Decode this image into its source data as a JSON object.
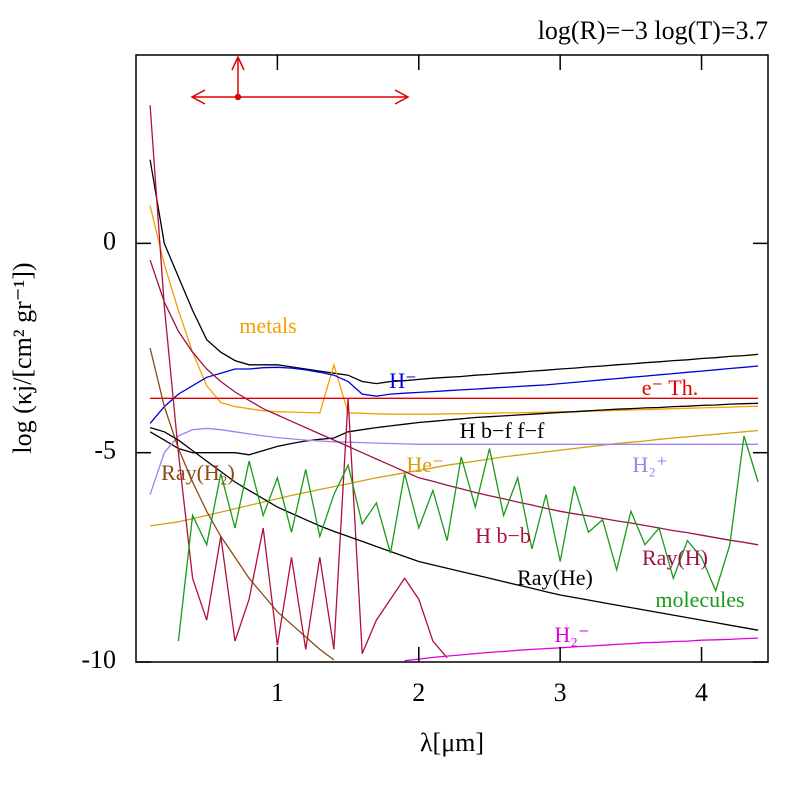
{
  "chart_data": {
    "type": "line",
    "title": "log(R)=−3  log(T)=3.7",
    "x_label": "λ[μm]",
    "y_label": "log (κj/[cm² gr⁻¹])",
    "xlim": [
      0,
      4.47
    ],
    "ylim": [
      -10,
      4.5
    ],
    "xticks": [
      1,
      2,
      3,
      4
    ],
    "yticks": [
      -10,
      -5,
      0
    ],
    "x": [
      0.1,
      0.2,
      0.3,
      0.4,
      0.5,
      0.6,
      0.7,
      0.8,
      0.9,
      1.0,
      1.1,
      1.2,
      1.3,
      1.4,
      1.5,
      1.6,
      1.7,
      1.8,
      1.9,
      2.0,
      2.1,
      2.2,
      2.3,
      2.4,
      2.5,
      2.6,
      2.7,
      2.8,
      2.9,
      3.0,
      3.1,
      3.2,
      3.3,
      3.4,
      3.5,
      3.6,
      3.7,
      3.8,
      3.9,
      4.0,
      4.1,
      4.2,
      4.3,
      4.4
    ],
    "series": [
      {
        "color": "#000000",
        "values": [
          2.0,
          0.0,
          -0.8,
          -1.6,
          -2.3,
          -2.6,
          -2.8,
          -2.9,
          -2.9,
          -2.9,
          -2.95,
          -3.0,
          -3.05,
          -3.1,
          -3.15,
          -3.3,
          -3.35,
          -3.3,
          -3.28,
          -3.25,
          -3.22,
          -3.2,
          -3.18,
          -3.15,
          -3.13,
          -3.1,
          -3.08,
          -3.05,
          -3.03,
          -3.0,
          -2.98,
          -2.95,
          -2.93,
          -2.9,
          -2.88,
          -2.85,
          -2.83,
          -2.8,
          -2.78,
          -2.75,
          -2.73,
          -2.7,
          -2.68,
          -2.65
        ]
      },
      {
        "name": "metals",
        "color": "#f5a000",
        "values": [
          0.9,
          -0.5,
          -1.6,
          -2.6,
          -3.4,
          -3.8,
          -3.9,
          -3.95,
          -4.0,
          -4.02,
          -4.03,
          -4.04,
          -4.05,
          -2.9,
          -4.05,
          -4.06,
          -4.07,
          -4.08,
          -4.08,
          -4.08,
          -4.08,
          -4.07,
          -4.07,
          -4.06,
          -4.06,
          -4.05,
          -4.05,
          -4.04,
          -4.03,
          -4.02,
          -4.02,
          -4.01,
          -4.0,
          -3.99,
          -3.98,
          -3.97,
          -3.96,
          -3.95,
          -3.94,
          -3.93,
          -3.92,
          -3.91,
          -3.9,
          -3.89
        ]
      },
      {
        "name": "H⁻",
        "color": "#0000dd",
        "values": [
          -4.3,
          -3.9,
          -3.6,
          -3.4,
          -3.2,
          -3.1,
          -3.0,
          -3.0,
          -2.97,
          -2.96,
          -2.98,
          -3.02,
          -3.08,
          -3.15,
          -3.3,
          -3.6,
          -3.65,
          -3.6,
          -3.58,
          -3.56,
          -3.54,
          -3.52,
          -3.5,
          -3.48,
          -3.46,
          -3.44,
          -3.42,
          -3.4,
          -3.38,
          -3.35,
          -3.32,
          -3.29,
          -3.26,
          -3.23,
          -3.2,
          -3.17,
          -3.14,
          -3.11,
          -3.08,
          -3.05,
          -3.02,
          -2.99,
          -2.96,
          -2.93
        ]
      },
      {
        "name": "e⁻ Th.",
        "color": "#e00000",
        "values": [
          -3.7,
          -3.7,
          -3.7,
          -3.7,
          -3.7,
          -3.7,
          -3.7,
          -3.7,
          -3.7,
          -3.7,
          -3.7,
          -3.7,
          -3.7,
          -3.7,
          -3.7,
          -3.7,
          -3.7,
          -3.7,
          -3.7,
          -3.7,
          -3.7,
          -3.7,
          -3.7,
          -3.7,
          -3.7,
          -3.7,
          -3.7,
          -3.7,
          -3.7,
          -3.7,
          -3.7,
          -3.7,
          -3.7,
          -3.7,
          -3.7,
          -3.7,
          -3.7,
          -3.7,
          -3.7,
          -3.7,
          -3.7,
          -3.7,
          -3.7,
          -3.7
        ]
      },
      {
        "name": "H b−f f−f",
        "color": "#000000",
        "values": [
          -4.5,
          -4.7,
          -4.9,
          -5.0,
          -5.0,
          -5.0,
          -5.0,
          -5.05,
          -4.95,
          -4.85,
          -4.78,
          -4.72,
          -4.68,
          -4.65,
          -4.5,
          -4.45,
          -4.4,
          -4.36,
          -4.32,
          -4.28,
          -4.25,
          -4.22,
          -4.19,
          -4.16,
          -4.14,
          -4.12,
          -4.1,
          -4.08,
          -4.06,
          -4.04,
          -4.02,
          -4.0,
          -3.98,
          -3.96,
          -3.95,
          -3.93,
          -3.92,
          -3.9,
          -3.89,
          -3.87,
          -3.86,
          -3.84,
          -3.83,
          -3.82
        ]
      },
      {
        "name": "He⁻",
        "color": "#d4a010",
        "values": [
          -6.75,
          -6.7,
          -6.65,
          -6.58,
          -6.5,
          -6.42,
          -6.34,
          -6.26,
          -6.18,
          -6.1,
          -6.02,
          -5.95,
          -5.88,
          -5.81,
          -5.74,
          -5.67,
          -5.6,
          -5.54,
          -5.48,
          -5.42,
          -5.36,
          -5.3,
          -5.25,
          -5.2,
          -5.15,
          -5.1,
          -5.06,
          -5.02,
          -4.98,
          -4.94,
          -4.9,
          -4.86,
          -4.82,
          -4.78,
          -4.75,
          -4.72,
          -4.68,
          -4.65,
          -4.62,
          -4.59,
          -4.56,
          -4.53,
          -4.5,
          -4.47
        ]
      },
      {
        "name": "H₂⁺",
        "color": "#a080f0",
        "values": [
          -6.0,
          -5.0,
          -4.6,
          -4.45,
          -4.42,
          -4.45,
          -4.5,
          -4.55,
          -4.6,
          -4.64,
          -4.67,
          -4.7,
          -4.72,
          -4.74,
          -4.75,
          -4.76,
          -4.77,
          -4.78,
          -4.79,
          -4.8,
          -4.8,
          -4.8,
          -4.8,
          -4.8,
          -4.8,
          -4.8,
          -4.8,
          -4.8,
          -4.8,
          -4.8,
          -4.8,
          -4.8,
          -4.8,
          -4.8,
          -4.8,
          -4.8,
          -4.8,
          -4.8,
          -4.8,
          -4.8,
          -4.8,
          -4.8,
          -4.8,
          -4.8
        ]
      },
      {
        "name": "Ray(H₂)",
        "color": "#8b4a10",
        "values": [
          -2.5,
          -3.9,
          -4.9,
          -5.7,
          -6.4,
          -7.0,
          -7.5,
          -8.0,
          -8.4,
          -8.8,
          -9.1,
          -9.4,
          -9.7,
          -9.95,
          null,
          null,
          null,
          null,
          null,
          null,
          null,
          null,
          null,
          null,
          null,
          null,
          null,
          null,
          null,
          null,
          null,
          null,
          null,
          null,
          null,
          null,
          null,
          null,
          null,
          null,
          null,
          null,
          null,
          null
        ]
      },
      {
        "name": "H b−b",
        "color": "#b0103a",
        "values": [
          3.3,
          -1.5,
          -5.0,
          -8.0,
          -9.0,
          -7.0,
          -9.5,
          -8.5,
          -6.8,
          -9.6,
          -7.5,
          -9.7,
          -7.5,
          -9.7,
          -3.7,
          -9.8,
          -9.0,
          -8.5,
          -8.0,
          -8.5,
          -9.5,
          -9.9,
          null,
          null,
          null,
          null,
          null,
          null,
          null,
          null,
          null,
          null,
          null,
          null,
          null,
          null,
          null,
          null,
          null,
          null,
          null,
          null,
          null,
          null
        ]
      },
      {
        "name": "Ray(H)",
        "color": "#a0104a",
        "values": [
          -0.4,
          -1.4,
          -2.1,
          -2.6,
          -3.0,
          -3.3,
          -3.55,
          -3.75,
          -3.95,
          -4.1,
          -4.25,
          -4.4,
          -4.55,
          -4.7,
          -4.85,
          -5.0,
          -5.15,
          -5.3,
          -5.45,
          -5.6,
          -5.68,
          -5.78,
          -5.86,
          -5.95,
          -6.03,
          -6.1,
          -6.18,
          -6.25,
          -6.33,
          -6.4,
          -6.46,
          -6.51,
          -6.57,
          -6.63,
          -6.68,
          -6.74,
          -6.8,
          -6.86,
          -6.91,
          -6.97,
          -7.03,
          -7.09,
          -7.14,
          -7.2
        ]
      },
      {
        "name": "Ray(He)",
        "color": "#000000",
        "values": [
          -4.4,
          -4.5,
          -4.7,
          -4.95,
          -5.2,
          -5.45,
          -5.7,
          -5.9,
          -6.1,
          -6.3,
          -6.45,
          -6.6,
          -6.75,
          -6.88,
          -7.0,
          -7.12,
          -7.24,
          -7.36,
          -7.48,
          -7.6,
          -7.68,
          -7.76,
          -7.84,
          -7.92,
          -8.0,
          -8.08,
          -8.16,
          -8.24,
          -8.32,
          -8.4,
          -8.46,
          -8.52,
          -8.58,
          -8.64,
          -8.7,
          -8.76,
          -8.82,
          -8.88,
          -8.94,
          -9.0,
          -9.06,
          -9.12,
          -9.18,
          -9.24
        ]
      },
      {
        "name": "molecules",
        "color": "#1a9a1a",
        "values": [
          null,
          null,
          -9.5,
          -6.5,
          -7.2,
          -5.5,
          -6.8,
          -5.2,
          -6.5,
          -5.6,
          -6.9,
          -5.4,
          -7.0,
          -6.0,
          -5.3,
          -6.7,
          -6.2,
          -7.4,
          -5.5,
          -6.8,
          -5.9,
          -7.1,
          -5.1,
          -6.3,
          -4.9,
          -6.5,
          -5.6,
          -7.3,
          -6.0,
          -7.6,
          -5.8,
          -6.9,
          -6.6,
          -7.8,
          -6.4,
          -7.2,
          -6.8,
          -8.0,
          -7.1,
          -7.5,
          -8.3,
          -7.2,
          -4.6,
          -5.7
        ]
      },
      {
        "name": "H₂⁻",
        "color": "#e000e0",
        "values": [
          null,
          null,
          null,
          null,
          null,
          null,
          null,
          null,
          null,
          null,
          null,
          null,
          null,
          null,
          null,
          null,
          null,
          null,
          -9.97,
          -9.93,
          -9.89,
          -9.86,
          -9.83,
          -9.8,
          -9.77,
          -9.75,
          -9.72,
          -9.7,
          -9.68,
          -9.66,
          -9.64,
          -9.62,
          -9.6,
          -9.58,
          -9.56,
          -9.54,
          -9.53,
          -9.51,
          -9.5,
          -9.48,
          -9.47,
          -9.46,
          -9.44,
          -9.43
        ]
      }
    ]
  }
}
